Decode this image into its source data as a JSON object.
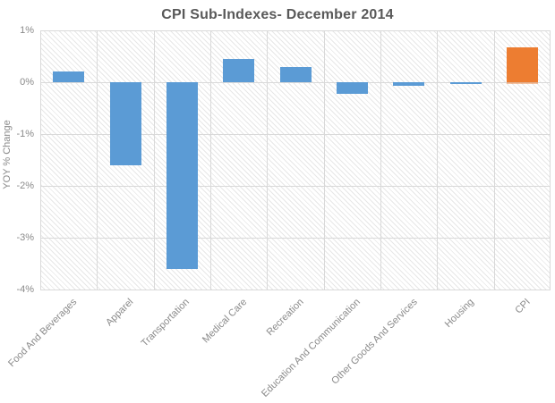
{
  "chart_data": {
    "type": "bar",
    "title": "CPI Sub-Indexes- December 2014",
    "ylabel": "YOY % Change",
    "xlabel": "",
    "categories": [
      "Food And Beverages",
      "Apparel",
      "Transportation",
      "Medical Care",
      "Recreation",
      "Education And Communication",
      "Other Goods And Services",
      "Housing",
      "CPI"
    ],
    "values": [
      0.2,
      -1.6,
      -3.6,
      0.45,
      0.3,
      -0.23,
      -0.07,
      -0.04,
      0.68
    ],
    "unit": "%",
    "ylim": [
      -4,
      1
    ],
    "yticks": [
      {
        "value": 1,
        "label": "1%"
      },
      {
        "value": 0,
        "label": "0%"
      },
      {
        "value": -1,
        "label": "-1%"
      },
      {
        "value": -2,
        "label": "-2%"
      },
      {
        "value": -3,
        "label": "-3%"
      },
      {
        "value": -4,
        "label": "-4%"
      }
    ],
    "grid": true,
    "legend": false,
    "background_pattern": "diagonal-hatch",
    "bar_color_default": "#5B9BD5",
    "bar_color_highlight": "#ED7D31",
    "highlight_category": "CPI"
  },
  "colors": {
    "title_text": "#595959",
    "axis_text": "#8A8A8A",
    "gridline": "#D9D9D9",
    "hatch_line": "#E7E7E7",
    "background": "#FFFFFF"
  }
}
